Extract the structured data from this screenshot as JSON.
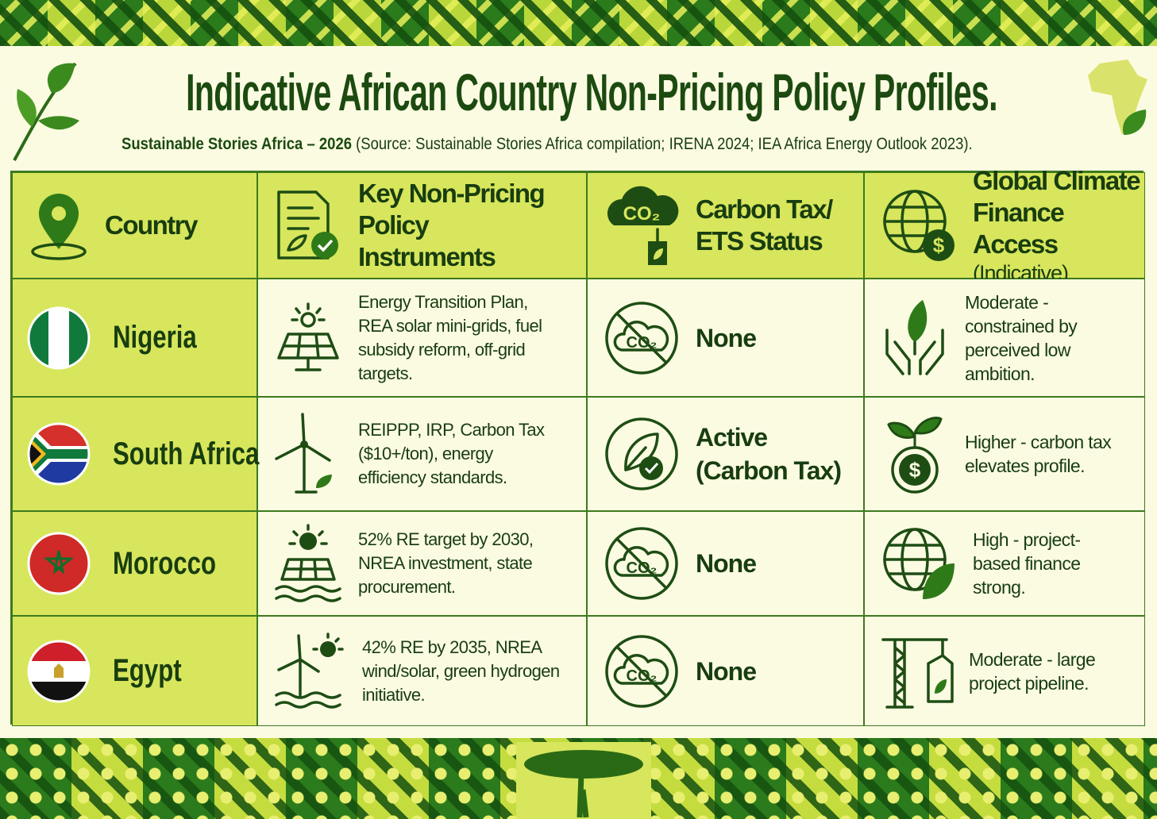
{
  "header": {
    "title": "Indicative African Country Non-Pricing Policy Profiles.",
    "subtitle_brand": "Sustainable Stories Africa – 2026",
    "subtitle_source": "(Source: Sustainable Stories Africa compilation; IRENA 2024; IEA Africa Energy Outlook 2023)."
  },
  "table": {
    "columns": [
      "Country",
      "Key Non-Pricing Policy Instruments",
      "Carbon Tax/ ETS Status",
      "Global Climate Finance Access"
    ],
    "column_note": "(Indicative)",
    "rows": [
      [
        "Nigeria",
        "Energy Transition Plan, REA solar mini-grids, fuel subsidy reform, off-grid targets.",
        "None",
        "Moderate - constrained by perceived low ambition."
      ],
      [
        "South Africa",
        "REIPPP, IRP, Carbon Tax ($10+/ton), energy efficiency standards.",
        "Active (Carbon Tax)",
        "Higher - carbon tax elevates profile."
      ],
      [
        "Morocco",
        "52% RE target by 2030, NREA investment, state procurement.",
        "None",
        "High - project-based finance strong."
      ],
      [
        "Egypt",
        "42% RE by 2035, NREA wind/solar, green hydrogen initiative.",
        "None",
        "Moderate - large project pipeline."
      ]
    ]
  },
  "icons": {
    "co2": "CO₂",
    "currency": "$"
  }
}
